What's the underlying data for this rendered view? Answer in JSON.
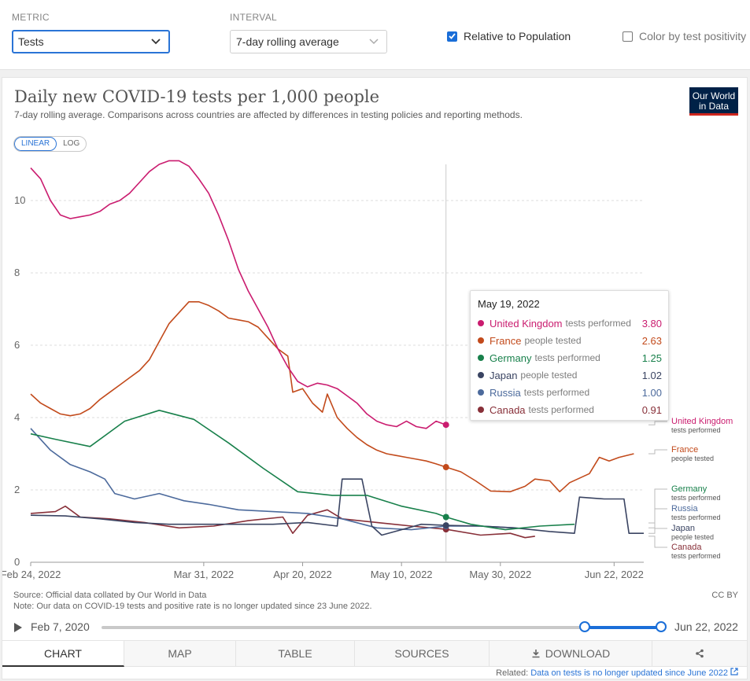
{
  "controls": {
    "metric_label": "METRIC",
    "metric_value": "Tests",
    "interval_label": "INTERVAL",
    "interval_value": "7-day rolling average",
    "relative_label": "Relative to Population",
    "relative_checked": true,
    "color_label": "Color by test positivity",
    "color_checked": false
  },
  "header": {
    "title": "Daily new COVID-19 tests per 1,000 people",
    "subtitle": "7-day rolling average. Comparisons across countries are affected by differences in testing policies and reporting methods.",
    "logo_line1": "Our World",
    "logo_line2": "in Data",
    "scale_linear": "LINEAR",
    "scale_log": "LOG"
  },
  "chart_data": {
    "type": "line",
    "title": "Daily new COVID-19 tests per 1,000 people",
    "ylim": [
      0,
      11
    ],
    "yticks": [
      0,
      2,
      4,
      6,
      8,
      10
    ],
    "xlim": [
      "2022-02-24",
      "2022-06-28"
    ],
    "xticks": [
      {
        "date": "2022-02-24",
        "label": "Feb 24, 2022"
      },
      {
        "date": "2022-03-31",
        "label": "Mar 31, 2022"
      },
      {
        "date": "2022-04-20",
        "label": "Apr 20, 2022"
      },
      {
        "date": "2022-05-10",
        "label": "May 10, 2022"
      },
      {
        "date": "2022-05-30",
        "label": "May 30, 2022"
      },
      {
        "date": "2022-06-22",
        "label": "Jun 22, 2022"
      }
    ],
    "grid": true,
    "hover_date": "2022-05-19",
    "series": [
      {
        "name": "United Kingdom",
        "metric": "tests performed",
        "color": "#ca1c6f",
        "points": [
          [
            "2022-02-24",
            10.9
          ],
          [
            "2022-02-26",
            10.6
          ],
          [
            "2022-02-28",
            10.0
          ],
          [
            "2022-03-02",
            9.6
          ],
          [
            "2022-03-04",
            9.5
          ],
          [
            "2022-03-06",
            9.55
          ],
          [
            "2022-03-08",
            9.6
          ],
          [
            "2022-03-10",
            9.7
          ],
          [
            "2022-03-12",
            9.9
          ],
          [
            "2022-03-14",
            10.0
          ],
          [
            "2022-03-16",
            10.2
          ],
          [
            "2022-03-18",
            10.5
          ],
          [
            "2022-03-20",
            10.8
          ],
          [
            "2022-03-22",
            11.0
          ],
          [
            "2022-03-24",
            11.1
          ],
          [
            "2022-03-26",
            11.1
          ],
          [
            "2022-03-28",
            10.95
          ],
          [
            "2022-03-30",
            10.6
          ],
          [
            "2022-04-01",
            10.2
          ],
          [
            "2022-04-03",
            9.6
          ],
          [
            "2022-04-05",
            8.9
          ],
          [
            "2022-04-07",
            8.1
          ],
          [
            "2022-04-09",
            7.5
          ],
          [
            "2022-04-11",
            7.0
          ],
          [
            "2022-04-13",
            6.5
          ],
          [
            "2022-04-15",
            5.9
          ],
          [
            "2022-04-17",
            5.4
          ],
          [
            "2022-04-19",
            5.0
          ],
          [
            "2022-04-21",
            4.85
          ],
          [
            "2022-04-23",
            4.95
          ],
          [
            "2022-04-25",
            4.9
          ],
          [
            "2022-04-27",
            4.8
          ],
          [
            "2022-04-29",
            4.6
          ],
          [
            "2022-05-01",
            4.4
          ],
          [
            "2022-05-03",
            4.1
          ],
          [
            "2022-05-05",
            3.9
          ],
          [
            "2022-05-07",
            3.8
          ],
          [
            "2022-05-09",
            3.75
          ],
          [
            "2022-05-11",
            3.9
          ],
          [
            "2022-05-13",
            3.75
          ],
          [
            "2022-05-15",
            3.7
          ],
          [
            "2022-05-17",
            3.9
          ],
          [
            "2022-05-19",
            3.8
          ]
        ]
      },
      {
        "name": "France",
        "metric": "people tested",
        "color": "#c24a1b",
        "points": [
          [
            "2022-02-24",
            4.65
          ],
          [
            "2022-02-26",
            4.4
          ],
          [
            "2022-02-28",
            4.25
          ],
          [
            "2022-03-02",
            4.1
          ],
          [
            "2022-03-04",
            4.05
          ],
          [
            "2022-03-06",
            4.1
          ],
          [
            "2022-03-08",
            4.25
          ],
          [
            "2022-03-10",
            4.5
          ],
          [
            "2022-03-12",
            4.7
          ],
          [
            "2022-03-14",
            4.9
          ],
          [
            "2022-03-16",
            5.1
          ],
          [
            "2022-03-18",
            5.3
          ],
          [
            "2022-03-20",
            5.6
          ],
          [
            "2022-03-22",
            6.1
          ],
          [
            "2022-03-24",
            6.6
          ],
          [
            "2022-03-26",
            6.9
          ],
          [
            "2022-03-28",
            7.2
          ],
          [
            "2022-03-30",
            7.2
          ],
          [
            "2022-04-01",
            7.1
          ],
          [
            "2022-04-03",
            6.95
          ],
          [
            "2022-04-05",
            6.75
          ],
          [
            "2022-04-07",
            6.7
          ],
          [
            "2022-04-09",
            6.65
          ],
          [
            "2022-04-11",
            6.5
          ],
          [
            "2022-04-13",
            6.2
          ],
          [
            "2022-04-15",
            5.9
          ],
          [
            "2022-04-17",
            5.7
          ],
          [
            "2022-04-18",
            4.7
          ],
          [
            "2022-04-20",
            4.8
          ],
          [
            "2022-04-22",
            4.4
          ],
          [
            "2022-04-24",
            4.15
          ],
          [
            "2022-04-25",
            4.65
          ],
          [
            "2022-04-27",
            4.0
          ],
          [
            "2022-04-29",
            3.7
          ],
          [
            "2022-05-01",
            3.45
          ],
          [
            "2022-05-03",
            3.25
          ],
          [
            "2022-05-05",
            3.1
          ],
          [
            "2022-05-07",
            3.0
          ],
          [
            "2022-05-09",
            2.95
          ],
          [
            "2022-05-11",
            2.9
          ],
          [
            "2022-05-13",
            2.85
          ],
          [
            "2022-05-15",
            2.8
          ],
          [
            "2022-05-17",
            2.72
          ],
          [
            "2022-05-19",
            2.63
          ],
          [
            "2022-05-22",
            2.5
          ],
          [
            "2022-05-25",
            2.25
          ],
          [
            "2022-05-28",
            1.97
          ],
          [
            "2022-06-01",
            1.95
          ],
          [
            "2022-06-04",
            2.1
          ],
          [
            "2022-06-06",
            2.3
          ],
          [
            "2022-06-09",
            2.25
          ],
          [
            "2022-06-11",
            1.95
          ],
          [
            "2022-06-13",
            2.2
          ],
          [
            "2022-06-17",
            2.45
          ],
          [
            "2022-06-19",
            2.9
          ],
          [
            "2022-06-21",
            2.8
          ],
          [
            "2022-06-23",
            2.9
          ],
          [
            "2022-06-26",
            3.0
          ]
        ]
      },
      {
        "name": "Germany",
        "metric": "tests performed",
        "color": "#18804b",
        "points": [
          [
            "2022-02-24",
            3.55
          ],
          [
            "2022-03-01",
            3.4
          ],
          [
            "2022-03-08",
            3.2
          ],
          [
            "2022-03-15",
            3.9
          ],
          [
            "2022-03-22",
            4.2
          ],
          [
            "2022-03-29",
            3.95
          ],
          [
            "2022-04-05",
            3.3
          ],
          [
            "2022-04-12",
            2.6
          ],
          [
            "2022-04-19",
            1.95
          ],
          [
            "2022-04-26",
            1.85
          ],
          [
            "2022-05-03",
            1.85
          ],
          [
            "2022-05-10",
            1.55
          ],
          [
            "2022-05-17",
            1.35
          ],
          [
            "2022-05-19",
            1.25
          ],
          [
            "2022-05-24",
            1.05
          ],
          [
            "2022-05-31",
            0.9
          ],
          [
            "2022-06-07",
            1.0
          ],
          [
            "2022-06-14",
            1.05
          ]
        ]
      },
      {
        "name": "Japan",
        "metric": "people tested",
        "color": "#3a4462",
        "points": [
          [
            "2022-02-24",
            1.3
          ],
          [
            "2022-03-03",
            1.28
          ],
          [
            "2022-03-10",
            1.2
          ],
          [
            "2022-03-17",
            1.1
          ],
          [
            "2022-03-24",
            1.05
          ],
          [
            "2022-03-31",
            1.05
          ],
          [
            "2022-04-07",
            1.05
          ],
          [
            "2022-04-14",
            1.05
          ],
          [
            "2022-04-21",
            1.1
          ],
          [
            "2022-04-27",
            1.0
          ],
          [
            "2022-04-28",
            2.3
          ],
          [
            "2022-05-02",
            2.3
          ],
          [
            "2022-05-04",
            1.0
          ],
          [
            "2022-05-06",
            0.75
          ],
          [
            "2022-05-10",
            0.9
          ],
          [
            "2022-05-14",
            1.05
          ],
          [
            "2022-05-19",
            1.02
          ],
          [
            "2022-05-26",
            1.0
          ],
          [
            "2022-06-02",
            0.95
          ],
          [
            "2022-06-09",
            0.85
          ],
          [
            "2022-06-14",
            0.8
          ],
          [
            "2022-06-15",
            1.8
          ],
          [
            "2022-06-20",
            1.75
          ],
          [
            "2022-06-24",
            1.75
          ],
          [
            "2022-06-25",
            0.8
          ],
          [
            "2022-06-28",
            0.8
          ]
        ]
      },
      {
        "name": "Russia",
        "metric": "tests performed",
        "color": "#4c6a9c",
        "points": [
          [
            "2022-02-24",
            3.7
          ],
          [
            "2022-02-28",
            3.1
          ],
          [
            "2022-03-04",
            2.7
          ],
          [
            "2022-03-08",
            2.5
          ],
          [
            "2022-03-11",
            2.3
          ],
          [
            "2022-03-13",
            1.9
          ],
          [
            "2022-03-17",
            1.75
          ],
          [
            "2022-03-22",
            1.9
          ],
          [
            "2022-03-27",
            1.7
          ],
          [
            "2022-04-01",
            1.6
          ],
          [
            "2022-04-07",
            1.45
          ],
          [
            "2022-04-14",
            1.4
          ],
          [
            "2022-04-21",
            1.35
          ],
          [
            "2022-04-28",
            1.2
          ],
          [
            "2022-05-05",
            0.95
          ],
          [
            "2022-05-12",
            0.9
          ],
          [
            "2022-05-19",
            1.0
          ],
          [
            "2022-05-26",
            1.0
          ],
          [
            "2022-06-02",
            0.95
          ]
        ]
      },
      {
        "name": "Canada",
        "metric": "tests performed",
        "color": "#883039",
        "points": [
          [
            "2022-02-24",
            1.35
          ],
          [
            "2022-03-01",
            1.4
          ],
          [
            "2022-03-03",
            1.55
          ],
          [
            "2022-03-06",
            1.25
          ],
          [
            "2022-03-12",
            1.2
          ],
          [
            "2022-03-19",
            1.1
          ],
          [
            "2022-03-26",
            0.95
          ],
          [
            "2022-04-02",
            1.0
          ],
          [
            "2022-04-09",
            1.15
          ],
          [
            "2022-04-16",
            1.25
          ],
          [
            "2022-04-18",
            0.8
          ],
          [
            "2022-04-21",
            1.3
          ],
          [
            "2022-04-25",
            1.45
          ],
          [
            "2022-04-28",
            1.2
          ],
          [
            "2022-05-05",
            1.1
          ],
          [
            "2022-05-12",
            1.0
          ],
          [
            "2022-05-19",
            0.91
          ],
          [
            "2022-05-26",
            0.75
          ],
          [
            "2022-06-01",
            0.8
          ],
          [
            "2022-06-04",
            0.68
          ],
          [
            "2022-06-06",
            0.72
          ]
        ]
      }
    ],
    "end_labels": [
      {
        "name": "United Kingdom",
        "metric": "tests performed"
      },
      {
        "name": "France",
        "metric": "people tested"
      },
      {
        "name": "Germany",
        "metric": "tests performed"
      },
      {
        "name": "Russia",
        "metric": "tests performed"
      },
      {
        "name": "Japan",
        "metric": "people tested"
      },
      {
        "name": "Canada",
        "metric": "tests performed"
      }
    ]
  },
  "tooltip": {
    "date": "May 19, 2022",
    "rows": [
      {
        "name": "United Kingdom",
        "metric": "tests performed",
        "value": "3.80",
        "color": "#ca1c6f"
      },
      {
        "name": "France",
        "metric": "people tested",
        "value": "2.63",
        "color": "#c24a1b"
      },
      {
        "name": "Germany",
        "metric": "tests performed",
        "value": "1.25",
        "color": "#18804b"
      },
      {
        "name": "Japan",
        "metric": "people tested",
        "value": "1.02",
        "color": "#3a4462"
      },
      {
        "name": "Russia",
        "metric": "tests performed",
        "value": "1.00",
        "color": "#4c6a9c"
      },
      {
        "name": "Canada",
        "metric": "tests performed",
        "value": "0.91",
        "color": "#883039"
      }
    ]
  },
  "footer": {
    "source": "Source: Official data collated by Our World in Data",
    "note": "Note: Our data on COVID-19 tests and positive rate is no longer updated since 23 June 2022.",
    "license": "CC BY",
    "timeline_start": "Feb 7, 2020",
    "timeline_end": "Jun 22, 2022",
    "tabs": [
      "CHART",
      "MAP",
      "TABLE",
      "SOURCES",
      "DOWNLOAD"
    ],
    "related_label": "Related:",
    "related_link": "Data on tests is no longer updated since June 2022"
  }
}
